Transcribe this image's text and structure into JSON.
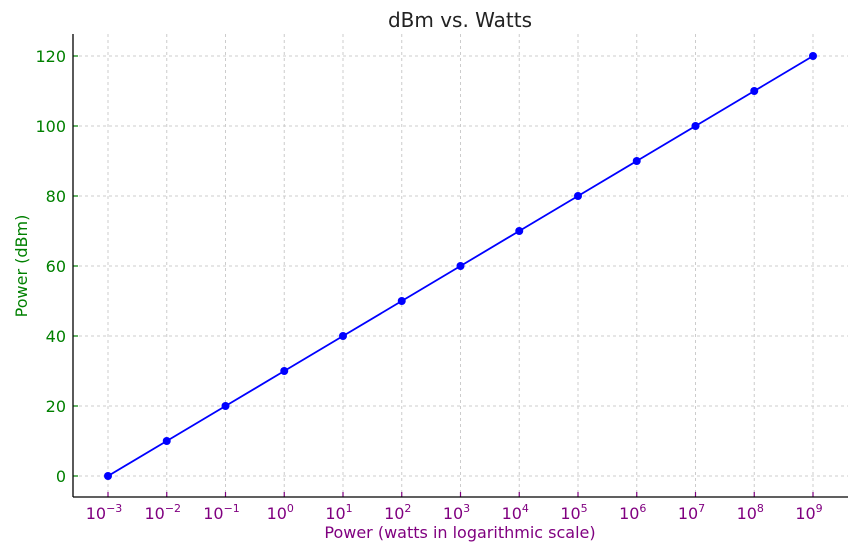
{
  "chart_data": {
    "type": "line",
    "title": "dBm vs. Watts",
    "xlabel": "Power (watts in logarithmic scale)",
    "ylabel": "Power (dBm)",
    "xscale": "log",
    "x_exponents": [
      -3,
      -2,
      -1,
      0,
      1,
      2,
      3,
      4,
      5,
      6,
      7,
      8,
      9
    ],
    "x_tick_exponents": [
      "−3",
      "−2",
      "−1",
      "0",
      "1",
      "2",
      "3",
      "4",
      "5",
      "6",
      "7",
      "8",
      "9"
    ],
    "y": [
      0,
      10,
      20,
      30,
      40,
      50,
      60,
      70,
      80,
      90,
      100,
      110,
      120
    ],
    "ylim": [
      -6,
      126
    ],
    "yticks": [
      0,
      20,
      40,
      60,
      80,
      100,
      120
    ],
    "grid": true,
    "colors": {
      "line": "#0000ff",
      "xaxis": "#800080",
      "yaxis": "#008000",
      "grid": "#cccccc"
    }
  }
}
